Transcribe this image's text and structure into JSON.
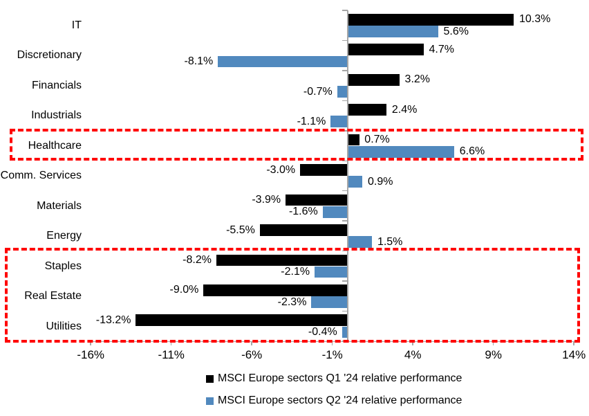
{
  "chart_data": {
    "type": "bar",
    "orientation": "horizontal",
    "title": "",
    "categories": [
      "IT",
      "Discretionary",
      "Financials",
      "Industrials",
      "Healthcare",
      "Comm. Services",
      "Materials",
      "Energy",
      "Staples",
      "Real Estate",
      "Utilities"
    ],
    "series": [
      {
        "name": "MSCI Europe sectors Q1 '24 relative performance",
        "color": "#000000",
        "values": [
          10.3,
          4.7,
          3.2,
          2.4,
          0.7,
          -3.0,
          -3.9,
          -5.5,
          -8.2,
          -9.0,
          -13.2
        ]
      },
      {
        "name": "MSCI Europe sectors Q2 '24 relative performance",
        "color": "#5189BE",
        "values": [
          5.6,
          -8.1,
          -0.7,
          -1.1,
          6.6,
          0.9,
          -1.6,
          1.5,
          -2.1,
          -2.3,
          -0.4
        ]
      }
    ],
    "value_labels_shown": true,
    "value_label_format": "one-decimal-percent",
    "x_axis": {
      "tick_labels": [
        "-16%",
        "-11%",
        "-6%",
        "-1%",
        "4%",
        "9%",
        "14%"
      ],
      "tick_values": [
        -16,
        -11,
        -6,
        -1,
        4,
        9,
        14
      ],
      "min": -16,
      "max": 14
    },
    "grid": false,
    "legend_position": "bottom",
    "highlights": [
      {
        "name": "healthcare-box",
        "rows": [
          "Healthcare"
        ],
        "color": "#FF0000",
        "style": "dashed"
      },
      {
        "name": "defensive-sectors-box",
        "rows": [
          "Staples",
          "Real Estate",
          "Utilities"
        ],
        "color": "#FF0000",
        "style": "dashed"
      }
    ]
  },
  "legend": {
    "items": [
      {
        "label": "MSCI Europe sectors Q1 '24 relative performance",
        "color": "#000000"
      },
      {
        "label": "MSCI Europe sectors Q2 '24 relative performance",
        "color": "#5189BE"
      }
    ]
  },
  "colors": {
    "q1_bar": "#000000",
    "q2_bar": "#5189BE",
    "highlight_red": "#FF0000",
    "axis_gray": "#A6A6A6",
    "background": "#FFFFFF"
  }
}
